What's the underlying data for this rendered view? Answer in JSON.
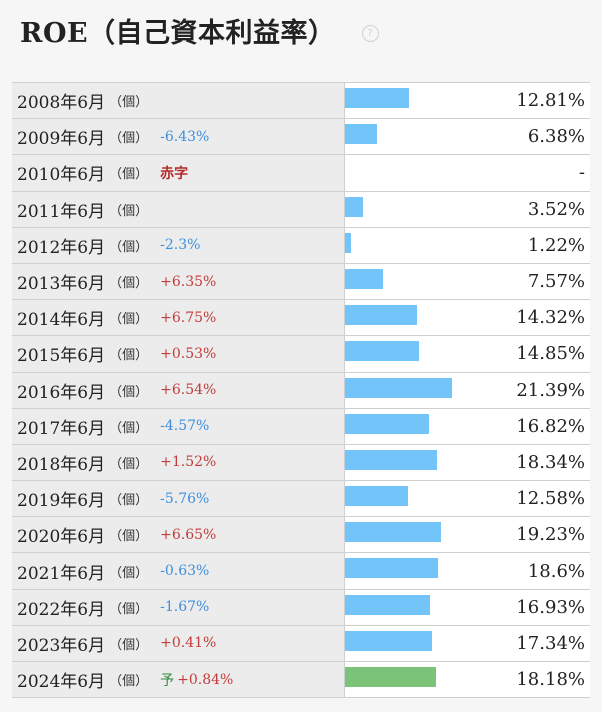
{
  "title": "ROE（自己資本利益率）",
  "help_icon": "question-circle-icon",
  "unit_label": "（個）",
  "forecast_label": "予",
  "colors": {
    "bar": "#73c4f8",
    "forecast_bar": "#7cc37a",
    "negative": "#3d8fdd",
    "positive": "#c43b3b"
  },
  "chart_data": {
    "type": "bar",
    "orientation": "horizontal",
    "title": "ROE（自己資本利益率）",
    "categories": [
      "2008年6月",
      "2009年6月",
      "2010年6月",
      "2011年6月",
      "2012年6月",
      "2013年6月",
      "2014年6月",
      "2015年6月",
      "2016年6月",
      "2017年6月",
      "2018年6月",
      "2019年6月",
      "2020年6月",
      "2021年6月",
      "2022年6月",
      "2023年6月",
      "2024年6月"
    ],
    "values": [
      12.81,
      6.38,
      null,
      3.52,
      1.22,
      7.57,
      14.32,
      14.85,
      21.39,
      16.82,
      18.34,
      12.58,
      19.23,
      18.6,
      16.93,
      17.34,
      18.18
    ],
    "value_labels": [
      "12.81%",
      "6.38%",
      "-",
      "3.52%",
      "1.22%",
      "7.57%",
      "14.32%",
      "14.85%",
      "21.39%",
      "16.82%",
      "18.34%",
      "12.58%",
      "19.23%",
      "18.6%",
      "16.93%",
      "17.34%",
      "18.18%"
    ],
    "changes": [
      "",
      "-6.43%",
      "赤字",
      "",
      "-2.3%",
      "+6.35%",
      "+6.75%",
      "+0.53%",
      "+6.54%",
      "-4.57%",
      "+1.52%",
      "-5.76%",
      "+6.65%",
      "-0.63%",
      "-1.67%",
      "+0.41%",
      "+0.84%"
    ],
    "forecast": [
      false,
      false,
      false,
      false,
      false,
      false,
      false,
      false,
      false,
      false,
      false,
      false,
      false,
      false,
      false,
      false,
      true
    ],
    "xlim": [
      0,
      49
    ]
  }
}
